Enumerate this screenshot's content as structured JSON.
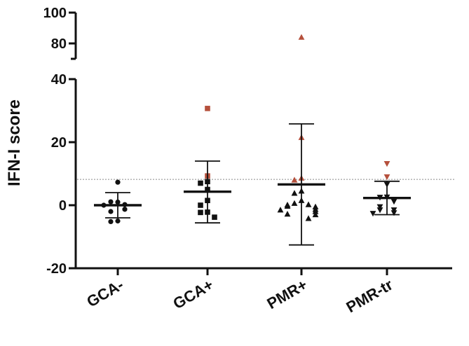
{
  "chart_data": {
    "type": "scatter",
    "ylabel": "IFN-I score",
    "xlabel": "",
    "categories": [
      "GCA-",
      "GCA+",
      "PMR+",
      "PMR-tr"
    ],
    "y_axis_break": {
      "lower_segment": {
        "ylim": [
          -20,
          40
        ],
        "ticks": [
          "-20",
          "0",
          "20",
          "40"
        ]
      },
      "upper_segment": {
        "ylim": [
          75,
          100
        ],
        "ticks": [
          "80",
          "100"
        ]
      }
    },
    "reference_line": {
      "y": 8.2,
      "style": "dashed"
    },
    "colors": {
      "black": "#111111",
      "highlight": "#b5503c"
    },
    "groups": [
      {
        "name": "GCA-",
        "marker": "circle",
        "mean": 0,
        "error_low": -4,
        "error_high": 4,
        "points": [
          {
            "y": 7.3,
            "c": "black"
          },
          {
            "y": 1.0,
            "c": "black"
          },
          {
            "y": 1.1,
            "c": "black"
          },
          {
            "y": 0.2,
            "c": "black"
          },
          {
            "y": 0.0,
            "c": "black"
          },
          {
            "y": -1.3,
            "c": "black"
          },
          {
            "y": -2.0,
            "c": "black"
          },
          {
            "y": -5.0,
            "c": "black"
          },
          {
            "y": -5.2,
            "c": "black"
          }
        ]
      },
      {
        "name": "GCA+",
        "marker": "square",
        "mean": 4.3,
        "error_low": -5.6,
        "error_high": 14.0,
        "points": [
          {
            "y": 30.7,
            "c": "highlight"
          },
          {
            "y": 9.3,
            "c": "highlight"
          },
          {
            "y": 7.5,
            "c": "black"
          },
          {
            "y": 7.0,
            "c": "black"
          },
          {
            "y": 5.0,
            "c": "black"
          },
          {
            "y": 1.5,
            "c": "black"
          },
          {
            "y": 0.0,
            "c": "black"
          },
          {
            "y": -2.2,
            "c": "black"
          },
          {
            "y": -2.3,
            "c": "black"
          },
          {
            "y": -3.8,
            "c": "black"
          }
        ]
      },
      {
        "name": "PMR+",
        "marker": "triangle-up",
        "mean": 6.6,
        "error_low": -12.6,
        "error_high": 25.8,
        "points": [
          {
            "y": 84.0,
            "c": "highlight"
          },
          {
            "y": 21.5,
            "c": "highlight"
          },
          {
            "y": 8.6,
            "c": "highlight"
          },
          {
            "y": 8.0,
            "c": "highlight"
          },
          {
            "y": 4.5,
            "c": "black"
          },
          {
            "y": 3.8,
            "c": "black"
          },
          {
            "y": 1.5,
            "c": "black"
          },
          {
            "y": 0.6,
            "c": "black"
          },
          {
            "y": 0.2,
            "c": "black"
          },
          {
            "y": 0.1,
            "c": "black"
          },
          {
            "y": -0.3,
            "c": "black"
          },
          {
            "y": -0.5,
            "c": "black"
          },
          {
            "y": -1.3,
            "c": "black"
          },
          {
            "y": -1.5,
            "c": "black"
          },
          {
            "y": -2.0,
            "c": "black"
          },
          {
            "y": -2.8,
            "c": "black"
          },
          {
            "y": -3.0,
            "c": "black"
          },
          {
            "y": -4.2,
            "c": "black"
          }
        ]
      },
      {
        "name": "PMR-tr",
        "marker": "triangle-down",
        "mean": 2.3,
        "error_low": -3.0,
        "error_high": 7.6,
        "points": [
          {
            "y": 13.2,
            "c": "highlight"
          },
          {
            "y": 9.0,
            "c": "highlight"
          },
          {
            "y": 6.6,
            "c": "black"
          },
          {
            "y": 2.6,
            "c": "black"
          },
          {
            "y": 2.5,
            "c": "black"
          },
          {
            "y": 1.2,
            "c": "black"
          },
          {
            "y": -0.5,
            "c": "black"
          },
          {
            "y": -1.5,
            "c": "black"
          },
          {
            "y": -1.5,
            "c": "black"
          },
          {
            "y": -2.4,
            "c": "black"
          },
          {
            "y": -2.6,
            "c": "black"
          }
        ]
      }
    ]
  }
}
